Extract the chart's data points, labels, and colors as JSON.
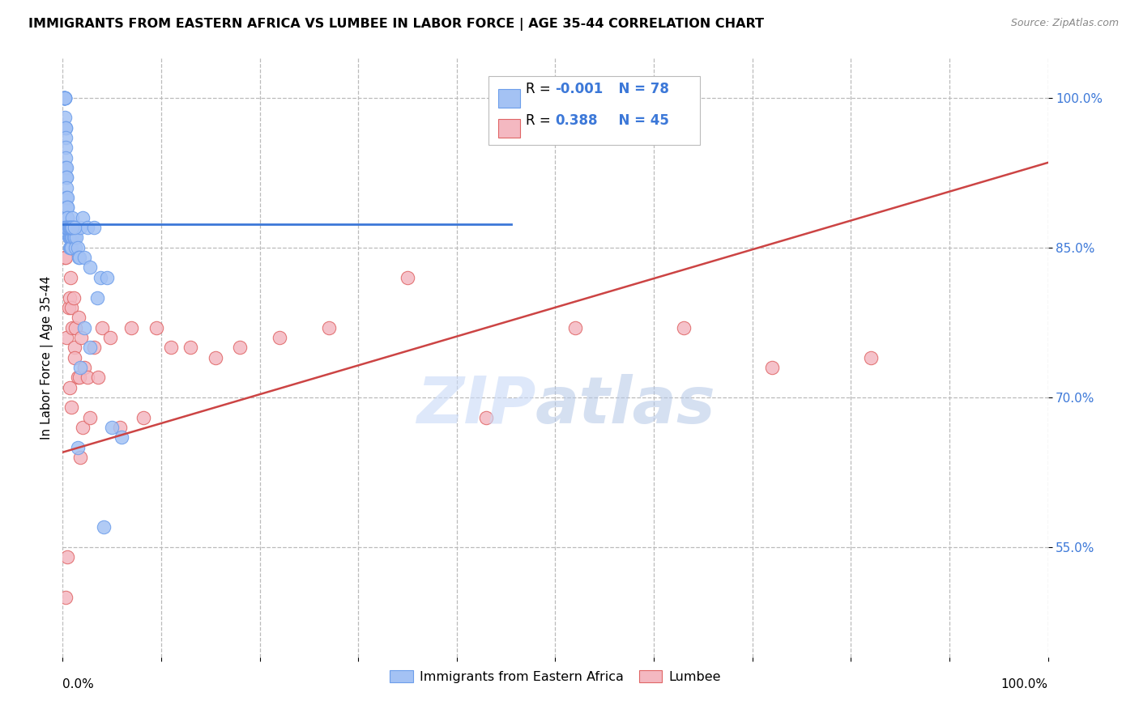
{
  "title": "IMMIGRANTS FROM EASTERN AFRICA VS LUMBEE IN LABOR FORCE | AGE 35-44 CORRELATION CHART",
  "source": "Source: ZipAtlas.com",
  "ylabel": "In Labor Force | Age 35-44",
  "blue_color": "#a4c2f4",
  "pink_color": "#f4b8c1",
  "blue_edge_color": "#6d9eeb",
  "pink_edge_color": "#e06666",
  "blue_line_color": "#3c78d8",
  "pink_line_color": "#cc4444",
  "R_blue": -0.001,
  "N_blue": 78,
  "R_pink": 0.388,
  "N_pink": 45,
  "legend_label_blue": "Immigrants from Eastern Africa",
  "legend_label_pink": "Lumbee",
  "watermark_zip": "ZIP",
  "watermark_atlas": "atlas",
  "ytick_vals": [
    0.55,
    0.7,
    0.85,
    1.0
  ],
  "ytick_labels": [
    "55.0%",
    "70.0%",
    "85.0%",
    "100.0%"
  ],
  "ylim_lo": 0.44,
  "ylim_hi": 1.04,
  "xlim_lo": 0.0,
  "xlim_hi": 1.0,
  "blue_trend_x0": 0.0,
  "blue_trend_x1": 0.455,
  "blue_trend_y": 0.873,
  "pink_trend_x0": 0.0,
  "pink_trend_y0": 0.645,
  "pink_trend_x1": 1.0,
  "pink_trend_y1": 0.935,
  "blue_x": [
    0.001,
    0.001,
    0.001,
    0.001,
    0.002,
    0.002,
    0.002,
    0.002,
    0.002,
    0.002,
    0.003,
    0.003,
    0.003,
    0.003,
    0.003,
    0.003,
    0.004,
    0.004,
    0.004,
    0.004,
    0.004,
    0.005,
    0.005,
    0.005,
    0.005,
    0.005,
    0.006,
    0.006,
    0.006,
    0.006,
    0.007,
    0.007,
    0.007,
    0.007,
    0.008,
    0.008,
    0.008,
    0.009,
    0.009,
    0.009,
    0.01,
    0.01,
    0.01,
    0.011,
    0.011,
    0.012,
    0.012,
    0.013,
    0.014,
    0.015,
    0.016,
    0.017,
    0.018,
    0.02,
    0.022,
    0.025,
    0.028,
    0.032,
    0.038,
    0.045,
    0.002,
    0.003,
    0.004,
    0.005,
    0.006,
    0.007,
    0.008,
    0.009,
    0.01,
    0.012,
    0.015,
    0.018,
    0.022,
    0.028,
    0.035,
    0.042,
    0.05,
    0.06
  ],
  "blue_y": [
    1.0,
    1.0,
    1.0,
    1.0,
    1.0,
    1.0,
    1.0,
    1.0,
    1.0,
    0.98,
    0.97,
    0.97,
    0.96,
    0.95,
    0.94,
    0.93,
    0.93,
    0.92,
    0.92,
    0.91,
    0.9,
    0.9,
    0.89,
    0.89,
    0.88,
    0.88,
    0.87,
    0.87,
    0.87,
    0.86,
    0.87,
    0.87,
    0.86,
    0.85,
    0.87,
    0.86,
    0.85,
    0.87,
    0.86,
    0.85,
    0.88,
    0.87,
    0.86,
    0.87,
    0.86,
    0.87,
    0.86,
    0.85,
    0.86,
    0.85,
    0.84,
    0.84,
    0.87,
    0.88,
    0.84,
    0.87,
    0.83,
    0.87,
    0.82,
    0.82,
    0.87,
    0.87,
    0.87,
    0.87,
    0.87,
    0.87,
    0.87,
    0.87,
    0.87,
    0.87,
    0.65,
    0.73,
    0.77,
    0.75,
    0.8,
    0.57,
    0.67,
    0.66
  ],
  "pink_x": [
    0.002,
    0.003,
    0.004,
    0.006,
    0.007,
    0.008,
    0.009,
    0.01,
    0.011,
    0.012,
    0.013,
    0.015,
    0.016,
    0.017,
    0.019,
    0.02,
    0.022,
    0.025,
    0.028,
    0.032,
    0.036,
    0.04,
    0.048,
    0.058,
    0.07,
    0.082,
    0.095,
    0.11,
    0.13,
    0.155,
    0.18,
    0.22,
    0.27,
    0.35,
    0.43,
    0.52,
    0.63,
    0.72,
    0.82,
    0.003,
    0.005,
    0.007,
    0.009,
    0.012,
    0.018
  ],
  "pink_y": [
    0.84,
    0.84,
    0.76,
    0.79,
    0.8,
    0.82,
    0.79,
    0.77,
    0.8,
    0.75,
    0.77,
    0.72,
    0.78,
    0.72,
    0.76,
    0.67,
    0.73,
    0.72,
    0.68,
    0.75,
    0.72,
    0.77,
    0.76,
    0.67,
    0.77,
    0.68,
    0.77,
    0.75,
    0.75,
    0.74,
    0.75,
    0.76,
    0.77,
    0.82,
    0.68,
    0.77,
    0.77,
    0.73,
    0.74,
    0.5,
    0.54,
    0.71,
    0.69,
    0.74,
    0.64
  ]
}
